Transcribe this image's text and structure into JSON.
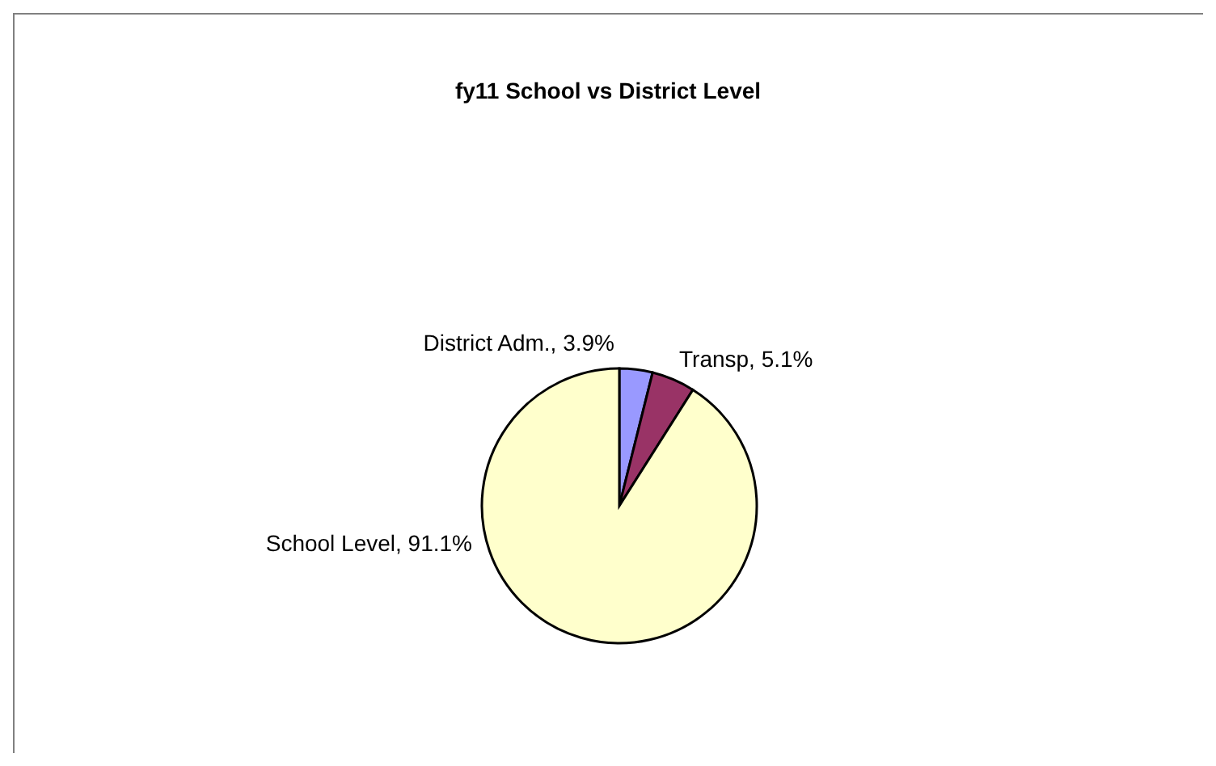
{
  "chart_data": {
    "type": "pie",
    "title": "fy11 School vs District Level",
    "categories": [
      "District Adm.",
      "Transp",
      "School Level"
    ],
    "values": [
      3.9,
      5.1,
      91.1
    ],
    "value_labels": [
      "3.9%",
      "5.1%",
      "91.1%"
    ],
    "colors": [
      "#9999ff",
      "#993366",
      "#ffffcc"
    ]
  }
}
